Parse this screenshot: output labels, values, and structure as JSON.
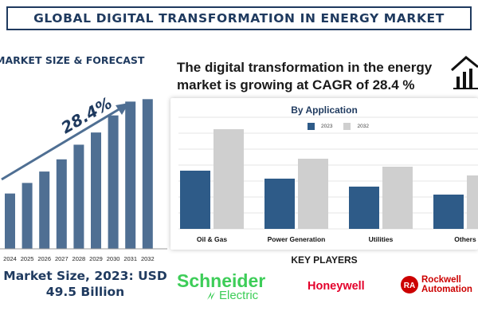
{
  "title": "GLOBAL DIGITAL TRANSFORMATION IN ENERGY MARKET",
  "left_panel": {
    "heading": "MARKET SIZE & FORECAST",
    "cagr_label": "28.4%",
    "market_size_line1": "Market Size, 2023: USD",
    "market_size_line2": "49.5 Billion"
  },
  "headline": "The digital transformation in the energy market is growing at CAGR of 28.4 %",
  "key_players_heading": "KEY PLAYERS",
  "key_players": [
    {
      "name": "Schneider",
      "sub": "Electric",
      "color": "#3dcd58"
    },
    {
      "name": "Honeywell",
      "color": "#e4002b"
    },
    {
      "name": "Rockwell",
      "sub": "Automation",
      "badge": "RA",
      "color": "#cc0000"
    }
  ],
  "icons": [
    "trend-house-icon",
    "trend-arrow-icon"
  ],
  "colors": {
    "navy": "#1f3a5f",
    "bar_left": "#4f6f93",
    "series_2023": "#2e5b88",
    "series_2032": "#cfcfcf"
  },
  "chart_data": [
    {
      "type": "bar",
      "title": "",
      "categories": [
        "2024",
        "2025",
        "2026",
        "2027",
        "2028",
        "2029",
        "2030",
        "2031",
        "2032"
      ],
      "values": [
        68,
        81,
        95,
        110,
        128,
        143,
        164,
        181,
        184
      ],
      "ylim": [
        0,
        200
      ],
      "xlabel": "",
      "ylabel": "",
      "annotation": "28.4%",
      "grid": false
    },
    {
      "type": "bar",
      "title": "By Application",
      "categories": [
        "Oil & Gas",
        "Power Generation",
        "Utilities",
        "Others"
      ],
      "series": [
        {
          "name": "2023",
          "values": [
            7.3,
            6.3,
            5.3,
            4.3
          ],
          "color": "#2e5b88"
        },
        {
          "name": "2032",
          "values": [
            12.5,
            8.8,
            7.8,
            6.7
          ],
          "color": "#cfcfcf"
        }
      ],
      "ylim": [
        0,
        14
      ],
      "grid": true,
      "legend_position": "top-center"
    }
  ]
}
